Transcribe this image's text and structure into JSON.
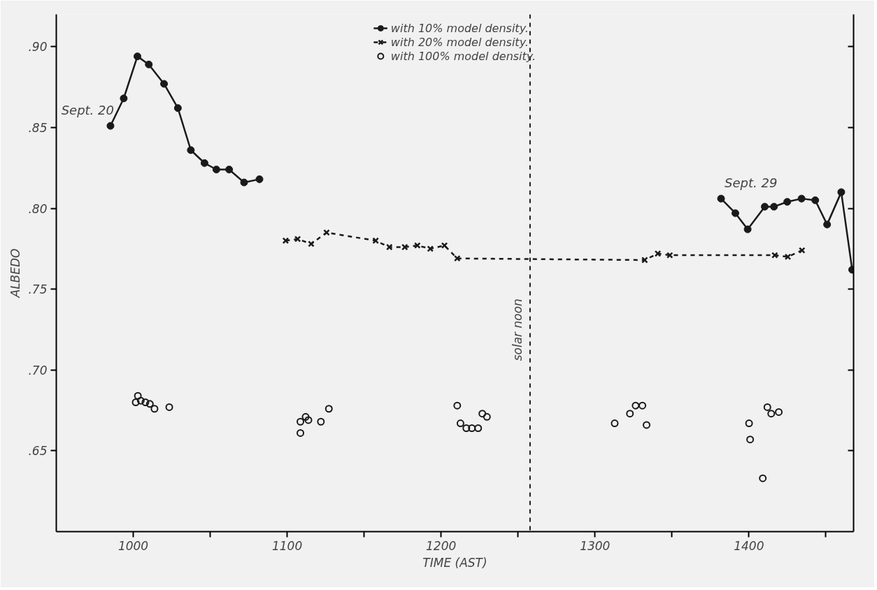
{
  "chart_data": {
    "type": "line",
    "xlabel": "TIME (AST)",
    "ylabel": "ALBEDO",
    "xlim": [
      950,
      1468
    ],
    "ylim": [
      0.6,
      0.92
    ],
    "xticks": [
      1000,
      {
        "value": 1050,
        "label": null
      },
      1100,
      {
        "value": 1150,
        "label": null
      },
      1200,
      {
        "value": 1250,
        "label": null
      },
      1300,
      {
        "value": 1350,
        "label": null
      },
      1400,
      {
        "value": 1450,
        "label": null
      }
    ],
    "yticks": [
      {
        "value": 0.65,
        "label": ".65"
      },
      {
        "value": 0.7,
        "label": ".70"
      },
      {
        "value": 0.75,
        "label": ".75"
      },
      {
        "value": 0.8,
        "label": ".80"
      },
      {
        "value": 0.85,
        "label": ".85"
      },
      {
        "value": 0.9,
        "label": ".90"
      }
    ],
    "grid": false,
    "legend": "top",
    "series": [
      {
        "name": "with 10% model density.",
        "marker": "circle",
        "line_style": "solid",
        "color": "#1a1a1a",
        "x": [
          985.2,
          993.8,
          1002.7,
          1010.1,
          1020,
          1029,
          1037.4,
          1046.3,
          1054,
          1062.3,
          1072,
          1082
        ],
        "values": [
          0.851,
          0.868,
          0.894,
          0.889,
          0.877,
          0.862,
          0.836,
          0.828,
          0.824,
          0.824,
          0.816,
          0.818
        ]
      },
      {
        "name": "with 20% model density.",
        "marker": "cross",
        "line_style": "dashed",
        "color": "#1a1a1a",
        "x": [
          1099,
          1106.8,
          1115.6,
          1125.6,
          1157.5,
          1166.4,
          1176.4,
          1184.6,
          1193,
          1202.2,
          1210.5,
          1332.3,
          1340.8,
          1348.6,
          1416.8,
          1425.3,
          1434.5
        ],
        "values": [
          0.78,
          0.781,
          0.778,
          0.785,
          0.78,
          0.776,
          0.776,
          0.777,
          0.775,
          0.777,
          0.769,
          0.768,
          0.772,
          0.771,
          0.771,
          0.77,
          0.774
        ]
      },
      {
        "name": "with 100% model density.",
        "type": "scatter",
        "marker": "circle_open",
        "color": "#1a1a1a",
        "x": [
          1003,
          1001.6,
          1004.9,
          1007.9,
          1010.8,
          1013.8,
          1023.4,
          1108.6,
          1108.6,
          1112,
          1113.8,
          1121.9,
          1127.1,
          1210.5,
          1212.6,
          1216.4,
          1220,
          1224.1,
          1226.8,
          1229.8,
          1312.8,
          1322.7,
          1326.4,
          1330.8,
          1333.5,
          1400.1,
          1400.8,
          1409,
          1412,
          1414.5,
          1419.4
        ],
        "values": [
          0.684,
          0.68,
          0.681,
          0.68,
          0.679,
          0.676,
          0.677,
          0.661,
          0.668,
          0.671,
          0.669,
          0.668,
          0.676,
          0.678,
          0.667,
          0.664,
          0.664,
          0.664,
          0.673,
          0.671,
          0.667,
          0.673,
          0.678,
          0.678,
          0.666,
          0.667,
          0.657,
          0.633,
          0.677,
          0.673,
          0.674
        ]
      },
      {
        "marker": "circle",
        "line_style": "solid",
        "color": "#1a1a1a",
        "x": [
          1381.9,
          1391.2,
          1399.2,
          1410.3,
          1416.3,
          1424.9,
          1434.2,
          1443.1,
          1450.8,
          1460,
          1467.1
        ],
        "values": [
          0.806,
          0.797,
          0.787,
          0.801,
          0.801,
          0.804,
          0.806,
          0.805,
          0.79,
          0.81,
          0.762
        ]
      }
    ],
    "ref_lines": [
      {
        "axis": "x",
        "value": 1257.8,
        "label": "solar noon",
        "line_style": "dashed",
        "color": "#1a1a1a"
      }
    ],
    "annotations": [
      {
        "text": "Sept. 20",
        "x": 985.2,
        "y": 0.851
      },
      {
        "text": "Sept. 29",
        "x": 1381.9,
        "y": 0.806
      }
    ]
  }
}
